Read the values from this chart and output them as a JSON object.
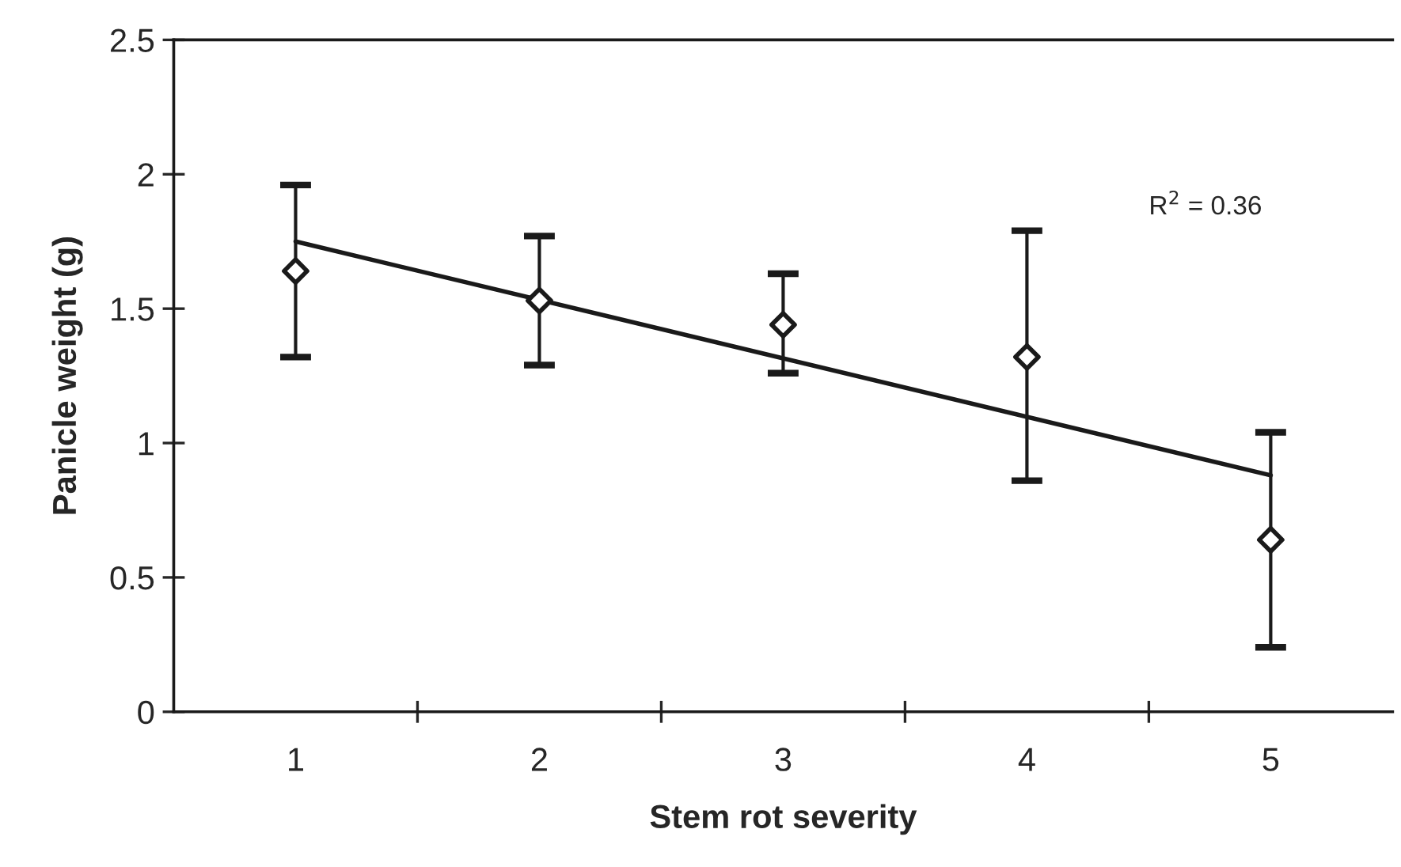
{
  "chart_data": {
    "type": "scatter",
    "xlabel": "Stem rot severity",
    "ylabel": "Panicle weight (g)",
    "xlim": [
      0.5,
      5.5
    ],
    "xticks": [
      {
        "value": 1,
        "label": "1"
      },
      {
        "value": 1.5,
        "label": null
      },
      {
        "value": 2,
        "label": "2"
      },
      {
        "value": 2.5,
        "label": null
      },
      {
        "value": 3,
        "label": "3"
      },
      {
        "value": 3.5,
        "label": null
      },
      {
        "value": 4,
        "label": "4"
      },
      {
        "value": 4.5,
        "label": null
      },
      {
        "value": 5,
        "label": "5"
      }
    ],
    "ylim": [
      0,
      2.5
    ],
    "yticks": [
      0,
      0.5,
      1,
      1.5,
      2,
      {
        "value": 2.5,
        "label": "2.5"
      }
    ],
    "grid": false,
    "marker": "diamond",
    "series": [
      {
        "color": "#1a1a1a",
        "x": [
          1,
          2,
          3,
          4,
          5
        ],
        "values": [
          1.64,
          1.53,
          1.44,
          1.32,
          0.64
        ],
        "errors": [
          [
            1.32,
            1.96
          ],
          [
            1.29,
            1.77
          ],
          [
            1.26,
            1.63
          ],
          [
            0.86,
            1.79
          ],
          [
            0.24,
            1.04
          ]
        ]
      },
      {
        "type": "line",
        "color": "#1a1a1a",
        "x": [
          1,
          5
        ],
        "values": [
          1.75,
          0.88
        ],
        "line_style": "solid",
        "marker": "none"
      }
    ],
    "annotations": [
      "R$^{2}$ = 0.36"
    ]
  }
}
